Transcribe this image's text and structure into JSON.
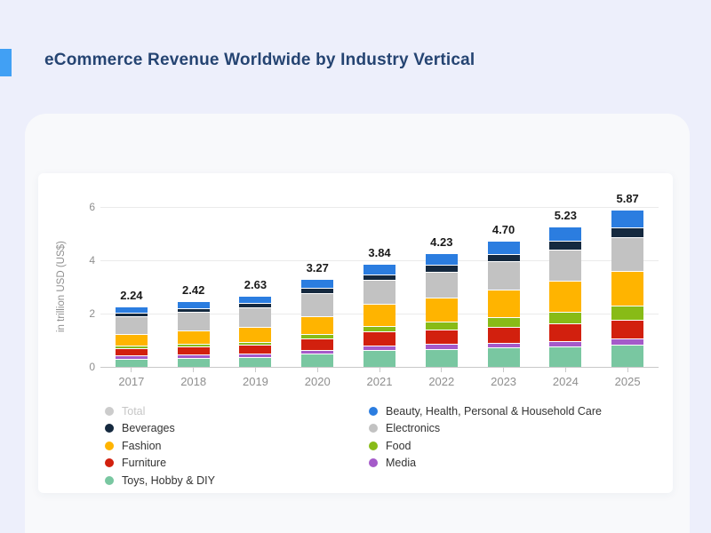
{
  "header": {
    "title": "eCommerce Revenue Worldwide by Industry Vertical",
    "accent_color": "#41a0f4",
    "title_color": "#254472"
  },
  "colors": {
    "page_background": "#edeffb",
    "panel_background": "#f8f9fb",
    "card_background": "#ffffff",
    "gridline": "#ebebeb",
    "axis_line": "#c9c9c9",
    "tick_label": "#8f8f8f",
    "value_label": "#1a1a1a"
  },
  "chart_data": {
    "type": "bar",
    "subtype": "stacked",
    "y_axis_title": "in trillion USD (US$)",
    "ylim": [
      0,
      6
    ],
    "y_ticks": [
      0,
      2,
      4,
      6
    ],
    "grid": true,
    "legend_position": "bottom",
    "categories": [
      "2017",
      "2018",
      "2019",
      "2020",
      "2021",
      "2022",
      "2023",
      "2024",
      "2025"
    ],
    "totals": [
      "2.24",
      "2.42",
      "2.63",
      "3.27",
      "3.84",
      "4.23",
      "4.70",
      "5.23",
      "5.87"
    ],
    "series": [
      {
        "name": "Toys, Hobby & DIY",
        "color": "#79c7a1",
        "values": [
          0.31,
          0.33,
          0.36,
          0.5,
          0.64,
          0.68,
          0.73,
          0.78,
          0.84
        ]
      },
      {
        "name": "Media",
        "color": "#a55ac9",
        "values": [
          0.09,
          0.1,
          0.1,
          0.12,
          0.14,
          0.15,
          0.16,
          0.17,
          0.19
        ]
      },
      {
        "name": "Furniture",
        "color": "#d2200e",
        "values": [
          0.28,
          0.3,
          0.33,
          0.42,
          0.52,
          0.56,
          0.6,
          0.65,
          0.7
        ]
      },
      {
        "name": "Food",
        "color": "#88bb17",
        "values": [
          0.06,
          0.07,
          0.09,
          0.14,
          0.2,
          0.26,
          0.33,
          0.42,
          0.52
        ]
      },
      {
        "name": "Fashion",
        "color": "#ffb400",
        "values": [
          0.47,
          0.52,
          0.57,
          0.7,
          0.83,
          0.92,
          1.05,
          1.18,
          1.33
        ]
      },
      {
        "name": "Electronics",
        "color": "#c2c2c2",
        "values": [
          0.7,
          0.74,
          0.79,
          0.88,
          0.93,
          1.0,
          1.08,
          1.18,
          1.28
        ]
      },
      {
        "name": "Beverages",
        "color": "#15293f",
        "values": [
          0.11,
          0.12,
          0.13,
          0.17,
          0.2,
          0.23,
          0.27,
          0.31,
          0.36
        ]
      },
      {
        "name": "Beauty, Health, Personal & Household Care",
        "color": "#2b7de0",
        "values": [
          0.22,
          0.24,
          0.26,
          0.34,
          0.38,
          0.43,
          0.48,
          0.54,
          0.65
        ]
      }
    ],
    "legend": {
      "left": [
        {
          "label": "Total",
          "color": "#cccccc",
          "muted": true
        },
        {
          "label": "Beverages",
          "color": "#15293f",
          "muted": false
        },
        {
          "label": "Fashion",
          "color": "#ffb400",
          "muted": false
        },
        {
          "label": "Furniture",
          "color": "#d2200e",
          "muted": false
        },
        {
          "label": "Toys, Hobby & DIY",
          "color": "#79c7a1",
          "muted": false
        }
      ],
      "right": [
        {
          "label": "Beauty, Health, Personal & Household Care",
          "color": "#2b7de0",
          "muted": false
        },
        {
          "label": "Electronics",
          "color": "#c2c2c2",
          "muted": false
        },
        {
          "label": "Food",
          "color": "#88bb17",
          "muted": false
        },
        {
          "label": "Media",
          "color": "#a55ac9",
          "muted": false
        }
      ]
    }
  }
}
